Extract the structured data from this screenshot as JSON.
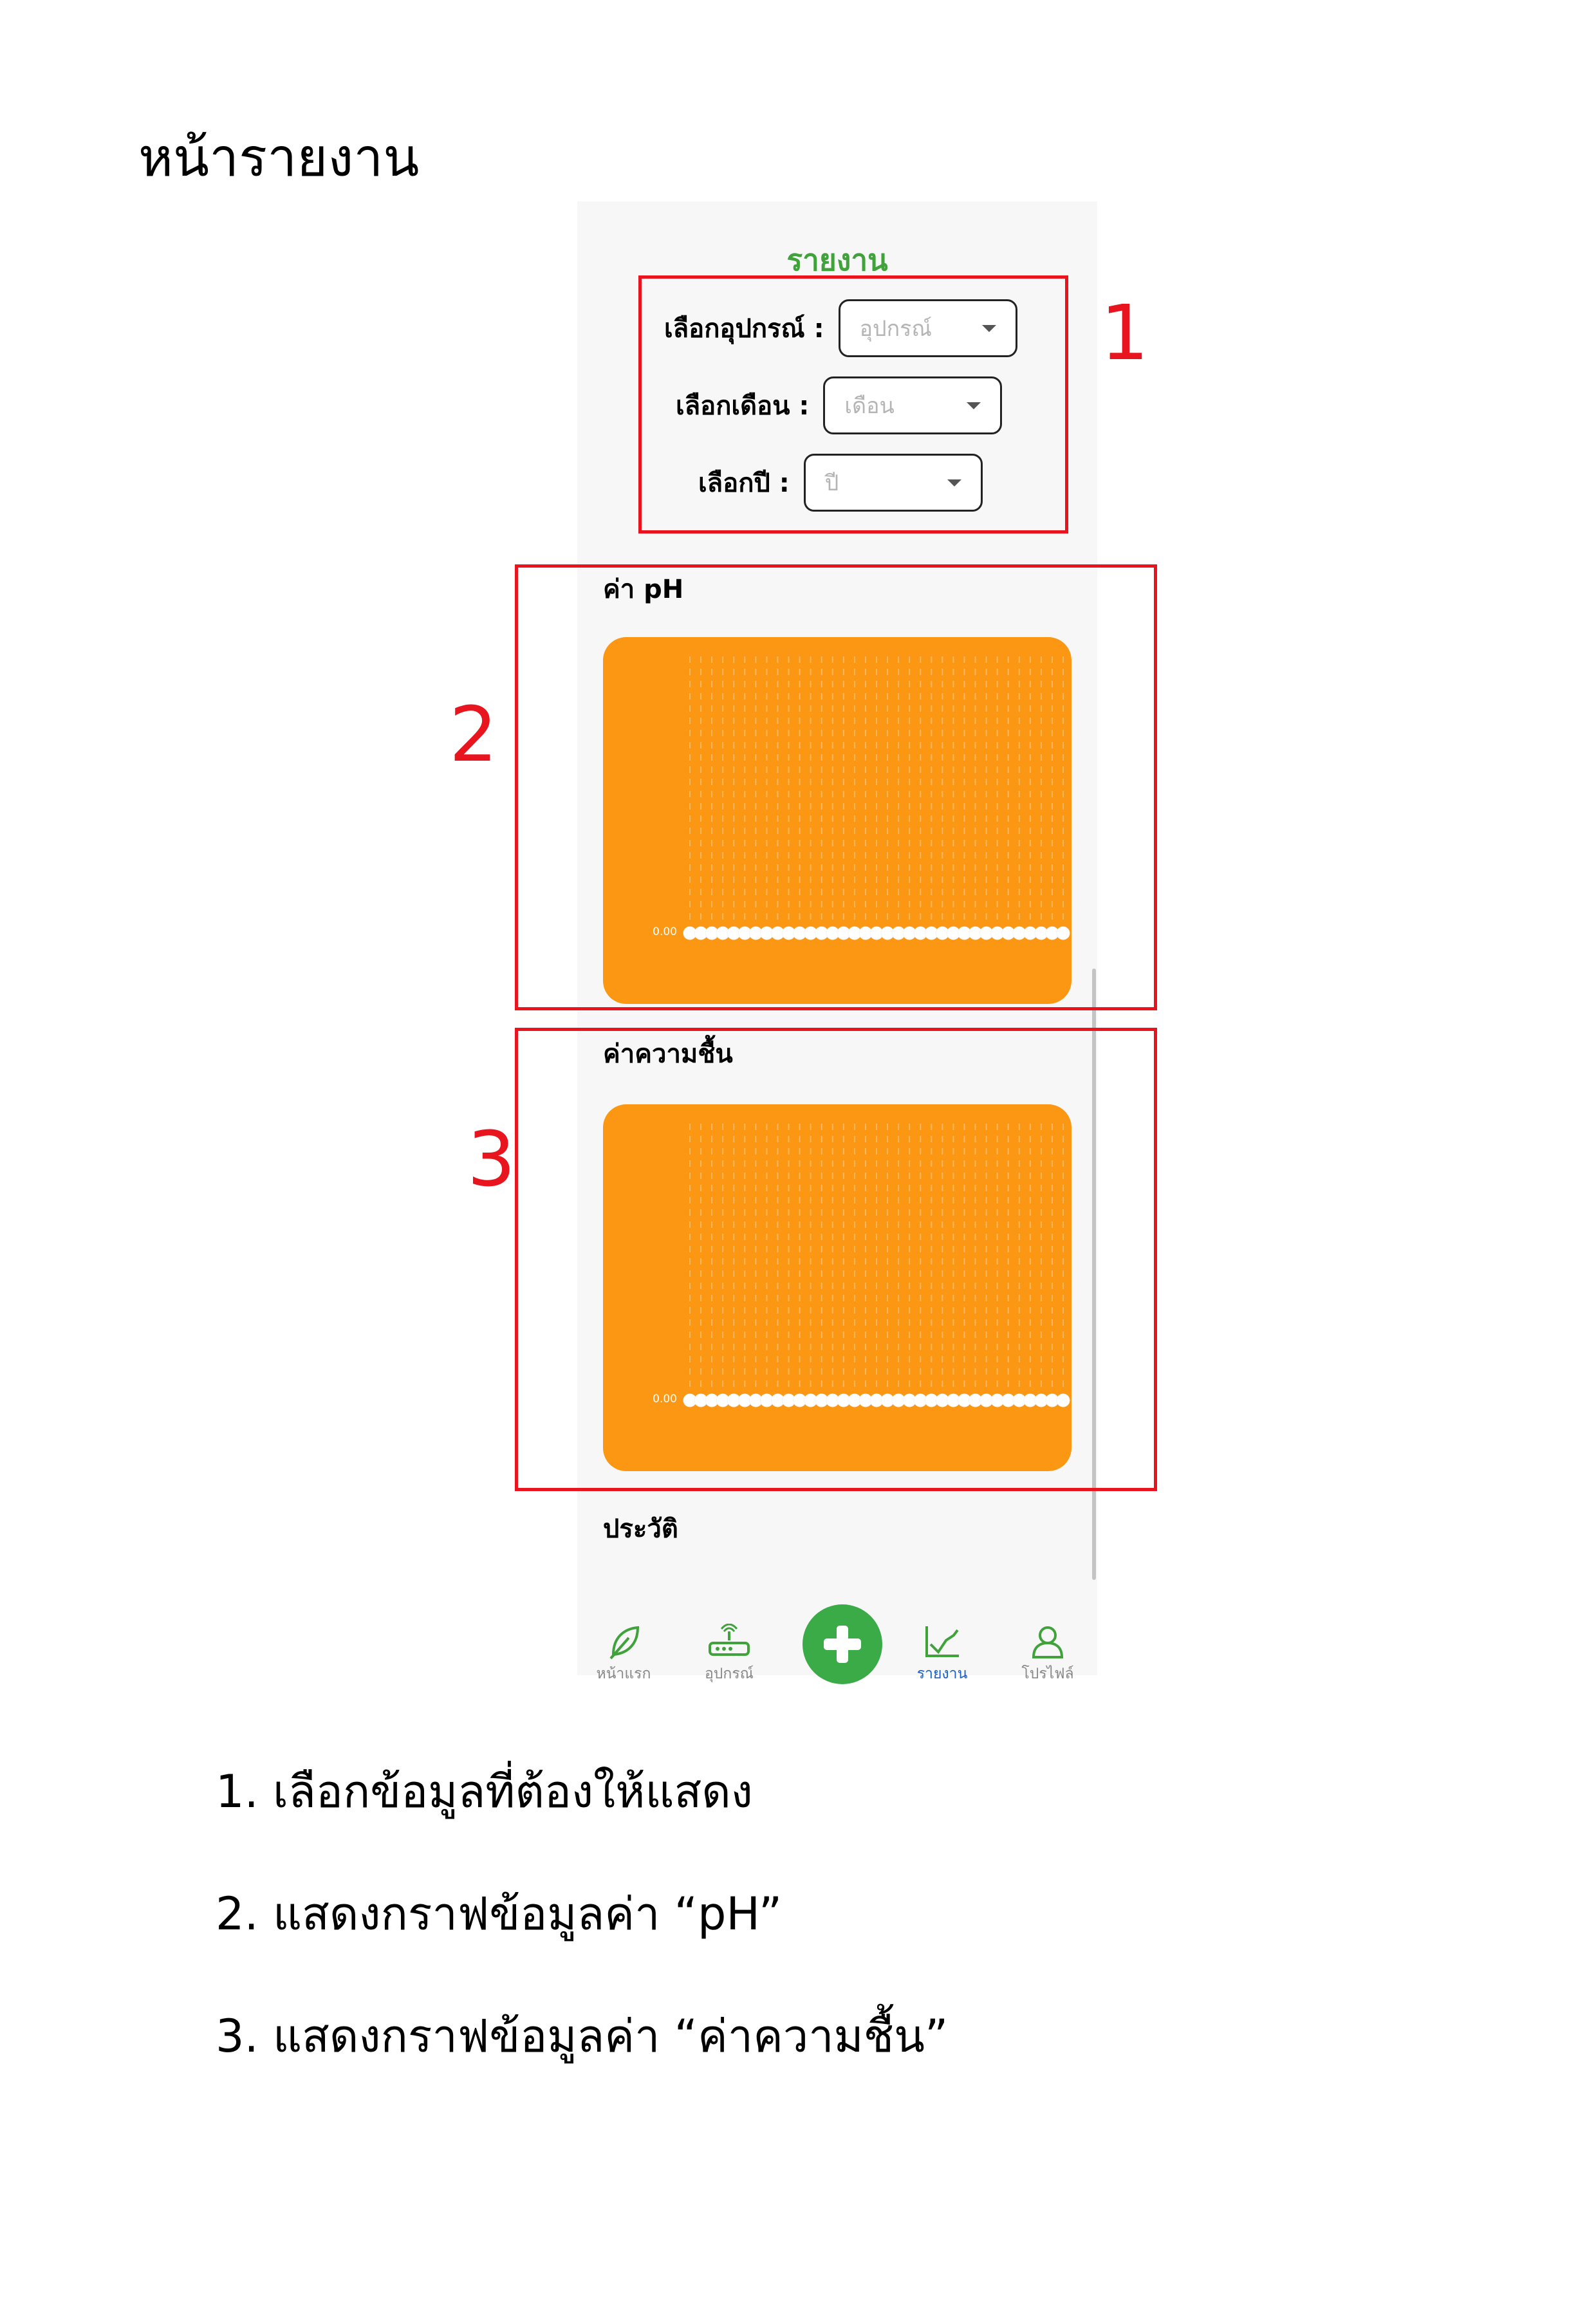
{
  "doc": {
    "title": "หน้ารายงาน",
    "captions": [
      "1. เลือกข้อมูลที่ต้องให้แสดง",
      "2. แสดงกราฟข้อมูลค่า “pH”",
      "3. แสดงกราฟข้อมูลค่า “ค่าความชื้น”"
    ]
  },
  "annotations": [
    {
      "number": "1",
      "color": "#e8141e"
    },
    {
      "number": "2",
      "color": "#e8141e"
    },
    {
      "number": "3",
      "color": "#e8141e"
    }
  ],
  "app": {
    "title": "รายงาน",
    "accent": "#3fa23a",
    "selectors": [
      {
        "label": "เลือกอุปกรณ์ :",
        "placeholder": "อุปกรณ์"
      },
      {
        "label": "เลือกเดือน :",
        "placeholder": "เดือน"
      },
      {
        "label": "เลือกปี :",
        "placeholder": "ปี"
      }
    ],
    "sections": {
      "ph": "ค่า pH",
      "humidity": "ค่าความชื้น",
      "history": "ประวัติ"
    },
    "nav": {
      "items": [
        {
          "label": "หน้าแรก",
          "icon": "leaf-icon"
        },
        {
          "label": "อุปกรณ์",
          "icon": "router-icon"
        },
        {
          "label": "รายงาน",
          "icon": "chart-line-icon",
          "active": true
        },
        {
          "label": "โปรไฟล์",
          "icon": "user-icon"
        }
      ],
      "fab_icon": "plus-icon",
      "active_color": "#1a60c8",
      "fab_color": "#3bab47"
    }
  },
  "chart_data": [
    {
      "type": "line",
      "y": [
        0,
        0,
        0,
        0,
        0,
        0,
        0,
        0,
        0,
        0,
        0,
        0,
        0,
        0,
        0,
        0,
        0,
        0,
        0,
        0,
        0,
        0,
        0,
        0,
        0,
        0,
        0,
        0,
        0,
        0,
        0,
        0,
        0,
        0,
        0
      ],
      "ytick_labels": [
        "0.00"
      ],
      "background": "#fb9712",
      "grid": true
    },
    {
      "type": "line",
      "y": [
        0,
        0,
        0,
        0,
        0,
        0,
        0,
        0,
        0,
        0,
        0,
        0,
        0,
        0,
        0,
        0,
        0,
        0,
        0,
        0,
        0,
        0,
        0,
        0,
        0,
        0,
        0,
        0,
        0,
        0,
        0,
        0,
        0,
        0,
        0
      ],
      "ytick_labels": [
        "0.00"
      ],
      "background": "#fb9712",
      "grid": true
    }
  ]
}
